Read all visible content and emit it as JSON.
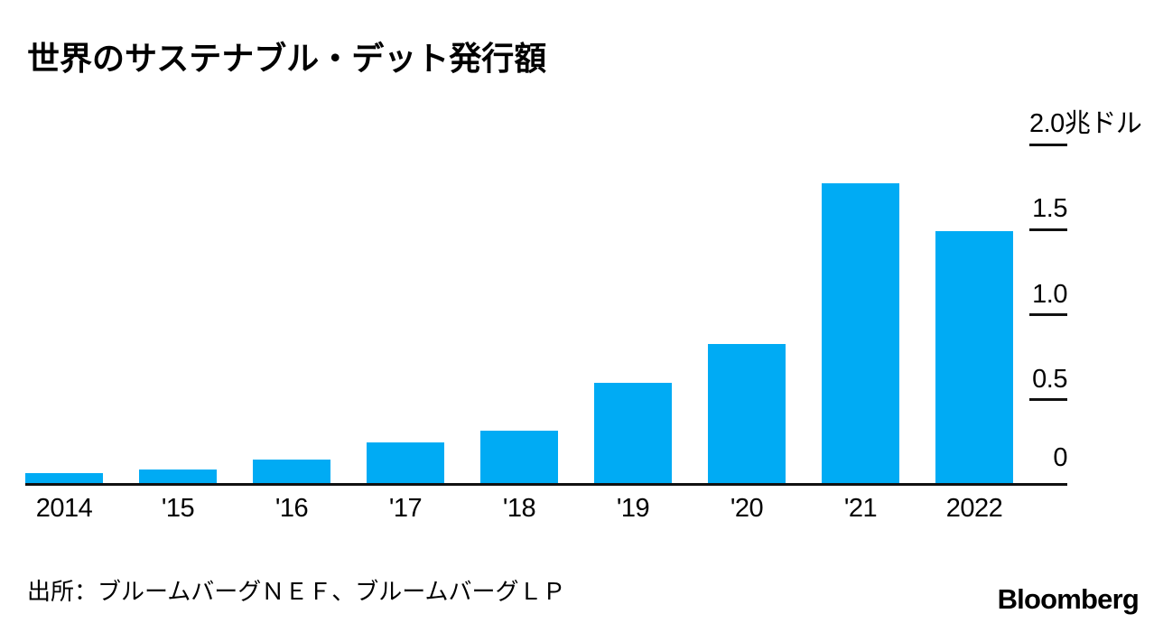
{
  "chart_data": {
    "type": "bar",
    "title": "世界のサステナブル・デット発行額",
    "categories": [
      "2014",
      "'15",
      "'16",
      "'17",
      "'18",
      "'19",
      "'20",
      "'21",
      "2022"
    ],
    "values": [
      0.07,
      0.09,
      0.15,
      0.25,
      0.32,
      0.6,
      0.83,
      1.77,
      1.49
    ],
    "unit": "兆ドル",
    "ylim": [
      0,
      2.0
    ],
    "yticks": [
      {
        "value": 2.0,
        "label": "2.0兆ドル"
      },
      {
        "value": 1.5,
        "label": "1.5"
      },
      {
        "value": 1.0,
        "label": "1.0"
      },
      {
        "value": 0.5,
        "label": "0.5"
      },
      {
        "value": 0,
        "label": "0"
      }
    ],
    "grid": false,
    "legend": "none",
    "axis_side": "right",
    "bar_color": "#00abf4",
    "axis_color": "#111111",
    "text_color": "#000000",
    "source": "出所：ブルームバーグＮＥＦ、ブルームバーグＬＰ",
    "brand": "Bloomberg"
  }
}
